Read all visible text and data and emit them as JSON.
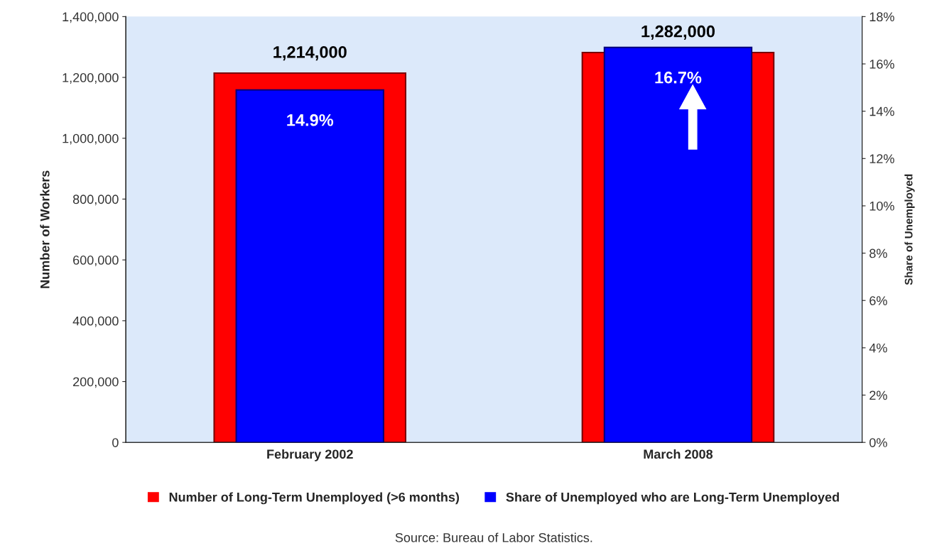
{
  "chart_data": {
    "type": "bar",
    "categories": [
      "February 2002",
      "March 2008"
    ],
    "series": [
      {
        "name": "Number of Long-Term Unemployed (>6 months)",
        "color": "#ff0000",
        "values": [
          1214000,
          1282000
        ],
        "value_labels": [
          "1,214,000",
          "1,282,000"
        ]
      },
      {
        "name": "Share of Unemployed who are Long-Term Unemployed",
        "color": "#0000ff",
        "values": [
          14.9,
          16.7
        ],
        "value_labels": [
          "14.9%",
          "16.7%"
        ],
        "axis": "y2"
      }
    ],
    "ylabel": "Number of Workers",
    "y2label": "Share of Unemployed",
    "ylim": [
      0,
      1400000
    ],
    "yticks": [
      0,
      {
        "value": 200000,
        "label": "200,000"
      },
      {
        "value": 400000,
        "label": "400,000"
      },
      {
        "value": 600000,
        "label": "600,000"
      },
      {
        "value": 800000,
        "label": "800,000"
      },
      {
        "value": 1000000,
        "label": "1,000,000"
      },
      {
        "value": 1200000,
        "label": "1,200,000"
      },
      {
        "value": 1400000,
        "label": "1,400,000"
      }
    ],
    "y2lim": [
      0,
      18
    ],
    "y2ticks": [
      {
        "value": 0,
        "label": "0%"
      },
      {
        "value": 2,
        "label": "2%"
      },
      {
        "value": 4,
        "label": "4%"
      },
      {
        "value": 6,
        "label": "6%"
      },
      {
        "value": 8,
        "label": "8%"
      },
      {
        "value": 10,
        "label": "10%"
      },
      {
        "value": 12,
        "label": "12%"
      },
      {
        "value": 14,
        "label": "14%"
      },
      {
        "value": 16,
        "label": "16%"
      },
      {
        "value": 18,
        "label": "18%"
      }
    ],
    "grid": false,
    "legend": "bottom",
    "annotations": [
      "Source: Bureau of Labor Statistics."
    ]
  }
}
